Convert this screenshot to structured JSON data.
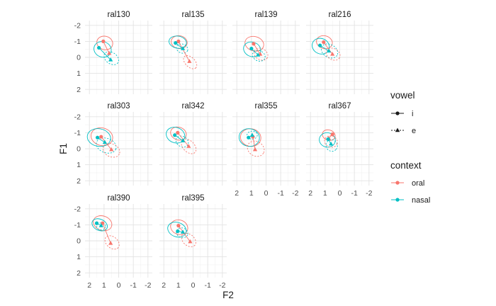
{
  "chart_data": {
    "type": "scatter",
    "title": "",
    "xlabel": "F2",
    "ylabel": "F1",
    "x_reversed": true,
    "y_reversed": true,
    "xlim": [
      2.3,
      -2.3
    ],
    "ylim": [
      -2.3,
      2.3
    ],
    "x_ticks": [
      "2",
      "1",
      "0",
      "-1",
      "-2"
    ],
    "y_ticks": [
      "-2",
      "-1",
      "0",
      "1",
      "2"
    ],
    "x_tick_values": [
      2,
      1,
      0,
      -1,
      -2
    ],
    "y_tick_values": [
      -2,
      -1,
      0,
      1,
      2
    ],
    "grid": true,
    "facet_wrap": {
      "ncol": 4
    },
    "panels": [
      "ral130",
      "ral135",
      "ral139",
      "ral216",
      "ral303",
      "ral342",
      "ral355",
      "ral367",
      "ral390",
      "ral395"
    ],
    "legend": {
      "placement": "right",
      "vowel": {
        "title": "vowel",
        "entries": [
          "i",
          "e"
        ],
        "linetypes": [
          "solid",
          "dashed"
        ],
        "shapes": [
          "circle",
          "triangle"
        ]
      },
      "context": {
        "title": "context",
        "entries": [
          "oral",
          "nasal"
        ],
        "colors": [
          "#F8766D",
          "#00BFC4"
        ]
      }
    },
    "points": [
      {
        "panel": "ral130",
        "context": "oral",
        "vowel": "i",
        "F2": 1.05,
        "F1": -1.0
      },
      {
        "panel": "ral130",
        "context": "oral",
        "vowel": "e",
        "F2": 0.65,
        "F1": -0.25
      },
      {
        "panel": "ral130",
        "context": "nasal",
        "vowel": "i",
        "F2": 1.35,
        "F1": -0.6
      },
      {
        "panel": "ral130",
        "context": "nasal",
        "vowel": "e",
        "F2": 0.55,
        "F1": 0.15
      },
      {
        "panel": "ral135",
        "context": "oral",
        "vowel": "i",
        "F2": 1.0,
        "F1": -1.0
      },
      {
        "panel": "ral135",
        "context": "oral",
        "vowel": "e",
        "F2": 0.25,
        "F1": 0.25
      },
      {
        "panel": "ral135",
        "context": "nasal",
        "vowel": "i",
        "F2": 1.2,
        "F1": -0.9
      },
      {
        "panel": "ral135",
        "context": "nasal",
        "vowel": "e",
        "F2": 0.7,
        "F1": -0.55
      },
      {
        "panel": "ral139",
        "context": "oral",
        "vowel": "i",
        "F2": 0.85,
        "F1": -0.85
      },
      {
        "panel": "ral139",
        "context": "oral",
        "vowel": "e",
        "F2": 0.4,
        "F1": -0.2
      },
      {
        "panel": "ral139",
        "context": "nasal",
        "vowel": "i",
        "F2": 1.0,
        "F1": -0.55
      },
      {
        "panel": "ral139",
        "context": "nasal",
        "vowel": "e",
        "F2": 0.55,
        "F1": -0.15
      },
      {
        "panel": "ral216",
        "context": "oral",
        "vowel": "i",
        "F2": 1.1,
        "F1": -0.95
      },
      {
        "panel": "ral216",
        "context": "oral",
        "vowel": "e",
        "F2": 0.5,
        "F1": -0.2
      },
      {
        "panel": "ral216",
        "context": "nasal",
        "vowel": "i",
        "F2": 1.35,
        "F1": -0.75
      },
      {
        "panel": "ral216",
        "context": "nasal",
        "vowel": "e",
        "F2": 0.75,
        "F1": -0.4
      },
      {
        "panel": "ral303",
        "context": "oral",
        "vowel": "i",
        "F2": 1.2,
        "F1": -0.75
      },
      {
        "panel": "ral303",
        "context": "oral",
        "vowel": "e",
        "F2": 0.5,
        "F1": 0.05
      },
      {
        "panel": "ral303",
        "context": "nasal",
        "vowel": "i",
        "F2": 1.45,
        "F1": -0.7
      },
      {
        "panel": "ral303",
        "context": "nasal",
        "vowel": "e",
        "F2": 0.95,
        "F1": -0.4
      },
      {
        "panel": "ral342",
        "context": "oral",
        "vowel": "i",
        "F2": 1.05,
        "F1": -1.0
      },
      {
        "panel": "ral342",
        "context": "oral",
        "vowel": "e",
        "F2": 0.3,
        "F1": -0.15
      },
      {
        "panel": "ral342",
        "context": "nasal",
        "vowel": "i",
        "F2": 1.25,
        "F1": -0.85
      },
      {
        "panel": "ral342",
        "context": "nasal",
        "vowel": "e",
        "F2": 0.7,
        "F1": -0.5
      },
      {
        "panel": "ral355",
        "context": "oral",
        "vowel": "i",
        "F2": 0.9,
        "F1": -0.75
      },
      {
        "panel": "ral355",
        "context": "oral",
        "vowel": "e",
        "F2": 0.75,
        "F1": 0.05
      },
      {
        "panel": "ral355",
        "context": "nasal",
        "vowel": "i",
        "F2": 1.2,
        "F1": -0.7
      },
      {
        "panel": "ral355",
        "context": "nasal",
        "vowel": "e",
        "F2": 0.95,
        "F1": -0.85
      },
      {
        "panel": "ral367",
        "context": "oral",
        "vowel": "i",
        "F2": 0.5,
        "F1": -0.9
      },
      {
        "panel": "ral367",
        "context": "oral",
        "vowel": "e",
        "F2": 0.75,
        "F1": -0.65
      },
      {
        "panel": "ral367",
        "context": "nasal",
        "vowel": "i",
        "F2": 0.8,
        "F1": -0.6
      },
      {
        "panel": "ral367",
        "context": "nasal",
        "vowel": "e",
        "F2": 0.6,
        "F1": -0.3
      },
      {
        "panel": "ral390",
        "context": "oral",
        "vowel": "i",
        "F2": 1.1,
        "F1": -1.1
      },
      {
        "panel": "ral390",
        "context": "oral",
        "vowel": "e",
        "F2": 0.55,
        "F1": 0.15
      },
      {
        "panel": "ral390",
        "context": "nasal",
        "vowel": "i",
        "F2": 1.5,
        "F1": -1.1
      },
      {
        "panel": "ral390",
        "context": "nasal",
        "vowel": "e",
        "F2": 1.2,
        "F1": -0.95
      },
      {
        "panel": "ral395",
        "context": "oral",
        "vowel": "i",
        "F2": 1.0,
        "F1": -0.95
      },
      {
        "panel": "ral395",
        "context": "oral",
        "vowel": "e",
        "F2": 0.2,
        "F1": 0.05
      },
      {
        "panel": "ral395",
        "context": "nasal",
        "vowel": "i",
        "F2": 1.05,
        "F1": -0.6
      },
      {
        "panel": "ral395",
        "context": "nasal",
        "vowel": "e",
        "F2": 0.7,
        "F1": -0.55
      }
    ],
    "ellipses": [
      {
        "panel": "ral130",
        "context": "oral",
        "vowel": "i",
        "cF2": 0.95,
        "cF1": -0.9,
        "rF2": 0.55,
        "rF1": 0.42,
        "angle": 15
      },
      {
        "panel": "ral130",
        "context": "nasal",
        "vowel": "i",
        "cF2": 1.1,
        "cF1": -0.5,
        "rF2": 0.6,
        "rF1": 0.48,
        "angle": 20
      },
      {
        "panel": "ral130",
        "context": "nasal",
        "vowel": "e",
        "cF2": 0.5,
        "cF1": 0.05,
        "rF2": 0.55,
        "rF1": 0.35,
        "angle": 35
      },
      {
        "panel": "ral135",
        "context": "oral",
        "vowel": "i",
        "cF2": 0.95,
        "cF1": -0.95,
        "rF2": 0.55,
        "rF1": 0.4,
        "angle": 10
      },
      {
        "panel": "ral135",
        "context": "nasal",
        "vowel": "i",
        "cF2": 1.05,
        "cF1": -0.95,
        "rF2": 0.6,
        "rF1": 0.38,
        "angle": 10
      },
      {
        "panel": "ral135",
        "context": "nasal",
        "vowel": "e",
        "cF2": 0.75,
        "cF1": -0.55,
        "rF2": 0.4,
        "rF1": 0.28,
        "angle": 20
      },
      {
        "panel": "ral135",
        "context": "oral",
        "vowel": "e",
        "cF2": 0.2,
        "cF1": 0.3,
        "rF2": 0.55,
        "rF1": 0.3,
        "angle": 45
      },
      {
        "panel": "ral139",
        "context": "oral",
        "vowel": "i",
        "cF2": 0.8,
        "cF1": -0.85,
        "rF2": 0.65,
        "rF1": 0.45,
        "angle": 15
      },
      {
        "panel": "ral139",
        "context": "nasal",
        "vowel": "i",
        "cF2": 0.95,
        "cF1": -0.5,
        "rF2": 0.6,
        "rF1": 0.45,
        "angle": 20
      },
      {
        "panel": "ral139",
        "context": "oral",
        "vowel": "e",
        "cF2": 0.35,
        "cF1": -0.2,
        "rF2": 0.5,
        "rF1": 0.35,
        "angle": 30
      },
      {
        "panel": "ral139",
        "context": "nasal",
        "vowel": "e",
        "cF2": 0.5,
        "cF1": -0.1,
        "rF2": 0.45,
        "rF1": 0.32,
        "angle": 25
      },
      {
        "panel": "ral216",
        "context": "oral",
        "vowel": "i",
        "cF2": 1.05,
        "cF1": -0.95,
        "rF2": 0.55,
        "rF1": 0.4,
        "angle": 15
      },
      {
        "panel": "ral216",
        "context": "nasal",
        "vowel": "i",
        "cF2": 1.3,
        "cF1": -0.7,
        "rF2": 0.6,
        "rF1": 0.48,
        "angle": 25
      },
      {
        "panel": "ral216",
        "context": "nasal",
        "vowel": "e",
        "cF2": 0.7,
        "cF1": -0.4,
        "rF2": 0.6,
        "rF1": 0.4,
        "angle": 30
      },
      {
        "panel": "ral216",
        "context": "oral",
        "vowel": "e",
        "cF2": 0.45,
        "cF1": -0.2,
        "rF2": 0.5,
        "rF1": 0.35,
        "angle": 30
      },
      {
        "panel": "ral303",
        "context": "oral",
        "vowel": "i",
        "cF2": 1.15,
        "cF1": -0.75,
        "rF2": 0.75,
        "rF1": 0.55,
        "angle": 15
      },
      {
        "panel": "ral303",
        "context": "nasal",
        "vowel": "i",
        "cF2": 1.35,
        "cF1": -0.7,
        "rF2": 0.8,
        "rF1": 0.55,
        "angle": 10
      },
      {
        "panel": "ral303",
        "context": "nasal",
        "vowel": "e",
        "cF2": 0.85,
        "cF1": -0.2,
        "rF2": 0.7,
        "rF1": 0.45,
        "angle": 20
      },
      {
        "panel": "ral303",
        "context": "oral",
        "vowel": "e",
        "cF2": 0.5,
        "cF1": 0.1,
        "rF2": 0.6,
        "rF1": 0.4,
        "angle": 25
      },
      {
        "panel": "ral342",
        "context": "oral",
        "vowel": "i",
        "cF2": 1.0,
        "cF1": -0.95,
        "rF2": 0.55,
        "rF1": 0.4,
        "angle": 20
      },
      {
        "panel": "ral342",
        "context": "nasal",
        "vowel": "i",
        "cF2": 1.2,
        "cF1": -0.85,
        "rF2": 0.65,
        "rF1": 0.48,
        "angle": 20
      },
      {
        "panel": "ral342",
        "context": "nasal",
        "vowel": "e",
        "cF2": 0.75,
        "cF1": -0.45,
        "rF2": 0.45,
        "rF1": 0.32,
        "angle": 30
      },
      {
        "panel": "ral342",
        "context": "oral",
        "vowel": "e",
        "cF2": 0.3,
        "cF1": -0.15,
        "rF2": 0.6,
        "rF1": 0.35,
        "angle": 45
      },
      {
        "panel": "ral355",
        "context": "oral",
        "vowel": "i",
        "cF2": 1.05,
        "cF1": -0.7,
        "rF2": 0.7,
        "rF1": 0.55,
        "angle": 10
      },
      {
        "panel": "ral355",
        "context": "nasal",
        "vowel": "i",
        "cF2": 1.15,
        "cF1": -0.7,
        "rF2": 0.7,
        "rF1": 0.55,
        "angle": 10
      },
      {
        "panel": "ral355",
        "context": "nasal",
        "vowel": "e",
        "cF2": 0.95,
        "cF1": -0.85,
        "rF2": 0.35,
        "rF1": 0.25,
        "angle": 0
      },
      {
        "panel": "ral355",
        "context": "oral",
        "vowel": "e",
        "cF2": 0.7,
        "cF1": 0.0,
        "rF2": 0.6,
        "rF1": 0.45,
        "angle": 30
      },
      {
        "panel": "ral367",
        "context": "oral",
        "vowel": "i",
        "cF2": 0.75,
        "cF1": -0.85,
        "rF2": 0.45,
        "rF1": 0.32,
        "angle": 20
      },
      {
        "panel": "ral367",
        "context": "nasal",
        "vowel": "i",
        "cF2": 0.85,
        "cF1": -0.55,
        "rF2": 0.55,
        "rF1": 0.45,
        "angle": 10
      },
      {
        "panel": "ral367",
        "context": "nasal",
        "vowel": "e",
        "cF2": 0.55,
        "cF1": -0.2,
        "rF2": 0.4,
        "rF1": 0.35,
        "angle": 45
      },
      {
        "panel": "ral367",
        "context": "oral",
        "vowel": "e",
        "cF2": 0.6,
        "cF1": -0.45,
        "rF2": 0.45,
        "rF1": 0.35,
        "angle": 20
      },
      {
        "panel": "ral390",
        "context": "oral",
        "vowel": "i",
        "cF2": 1.1,
        "cF1": -1.1,
        "rF2": 0.65,
        "rF1": 0.45,
        "angle": 20
      },
      {
        "panel": "ral390",
        "context": "nasal",
        "vowel": "i",
        "cF2": 1.3,
        "cF1": -1.0,
        "rF2": 0.55,
        "rF1": 0.35,
        "angle": 25
      },
      {
        "panel": "ral390",
        "context": "nasal",
        "vowel": "e",
        "cF2": 1.2,
        "cF1": -0.9,
        "rF2": 0.3,
        "rF1": 0.22,
        "angle": 0
      },
      {
        "panel": "ral390",
        "context": "oral",
        "vowel": "e",
        "cF2": 0.45,
        "cF1": 0.1,
        "rF2": 0.55,
        "rF1": 0.35,
        "angle": 40
      },
      {
        "panel": "ral395",
        "context": "oral",
        "vowel": "i",
        "cF2": 0.95,
        "cF1": -0.85,
        "rF2": 0.6,
        "rF1": 0.45,
        "angle": 20
      },
      {
        "panel": "ral395",
        "context": "nasal",
        "vowel": "i",
        "cF2": 1.1,
        "cF1": -0.7,
        "rF2": 0.65,
        "rF1": 0.45,
        "angle": 20
      },
      {
        "panel": "ral395",
        "context": "nasal",
        "vowel": "e",
        "cF2": 0.75,
        "cF1": -0.5,
        "rF2": 0.4,
        "rF1": 0.3,
        "angle": 20
      },
      {
        "panel": "ral395",
        "context": "oral",
        "vowel": "e",
        "cF2": 0.3,
        "cF1": -0.05,
        "rF2": 0.55,
        "rF1": 0.35,
        "angle": 40
      }
    ]
  }
}
